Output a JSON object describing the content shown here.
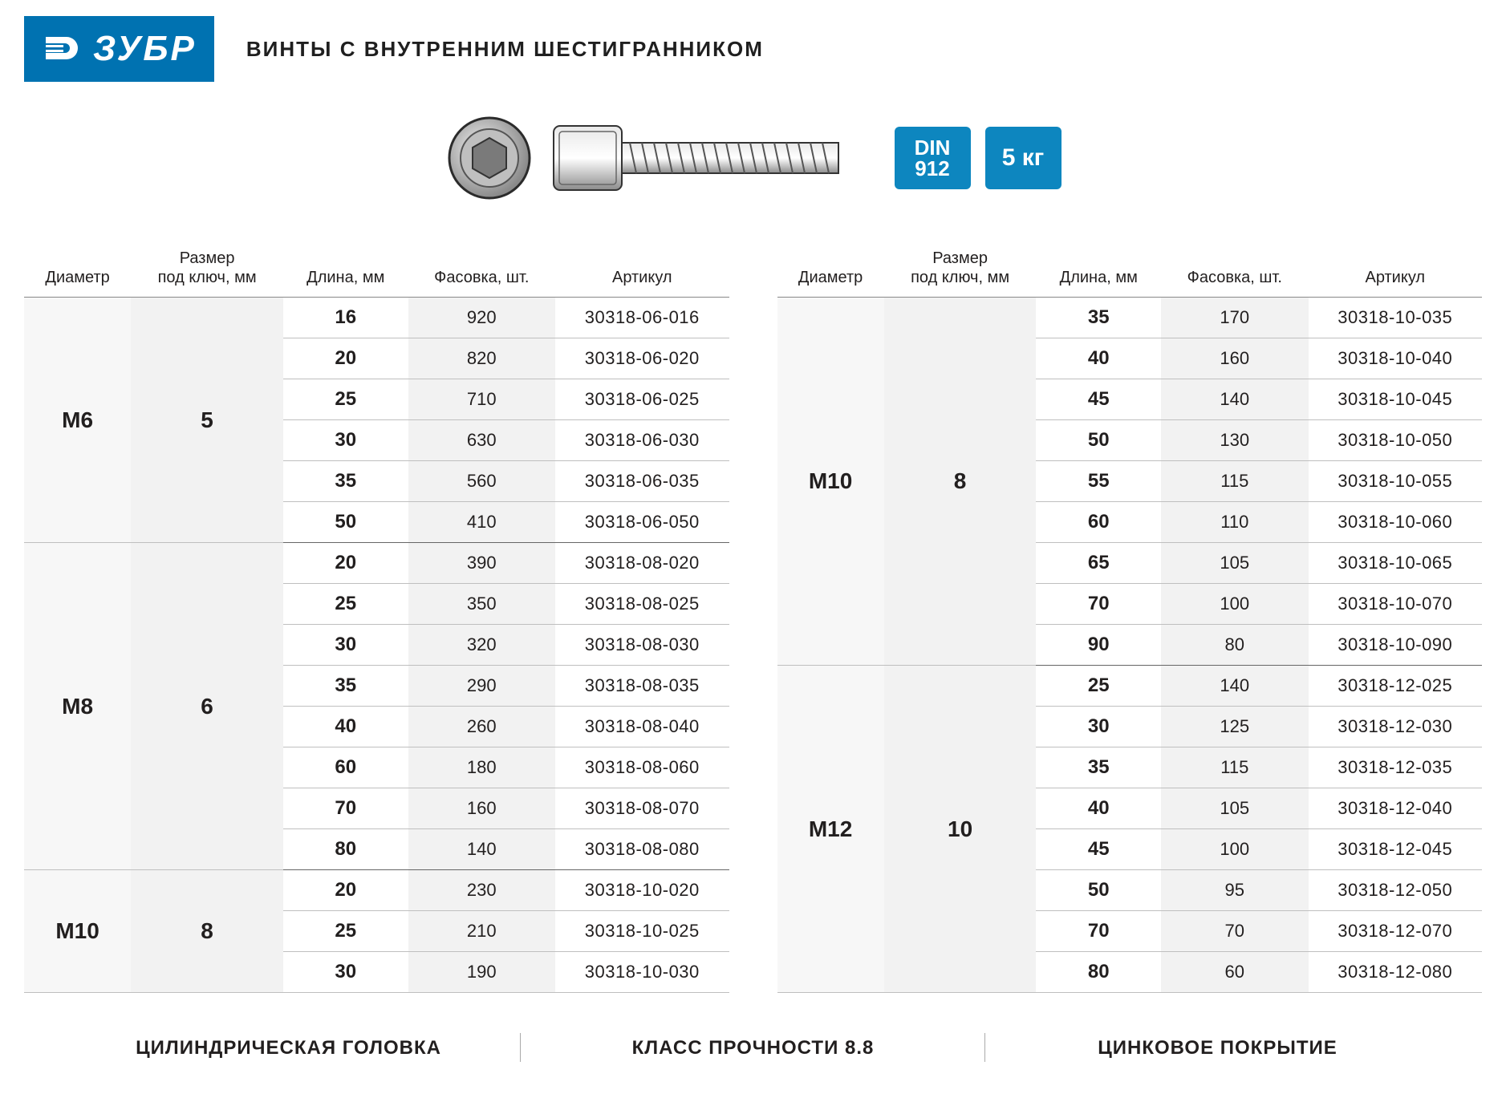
{
  "logo_text": "ЗУБР",
  "title": "ВИНТЫ С ВНУТРЕННИМ ШЕСТИГРАННИКОМ",
  "badges": [
    {
      "line1": "DIN",
      "line2": "912"
    },
    {
      "line1": "5 кг",
      "line2": ""
    }
  ],
  "columns": [
    "Диаметр",
    "Размер\nпод ключ, мм",
    "Длина, мм",
    "Фасовка, шт.",
    "Артикул"
  ],
  "colors": {
    "brand": "#0072b1",
    "badge": "#0d86bf",
    "row_alt": "#f2f2f2"
  },
  "table_left": {
    "groups": [
      {
        "diameter": "M6",
        "key": "5",
        "rows": [
          {
            "len": "16",
            "qty": "920",
            "art": "30318-06-016"
          },
          {
            "len": "20",
            "qty": "820",
            "art": "30318-06-020"
          },
          {
            "len": "25",
            "qty": "710",
            "art": "30318-06-025"
          },
          {
            "len": "30",
            "qty": "630",
            "art": "30318-06-030"
          },
          {
            "len": "35",
            "qty": "560",
            "art": "30318-06-035"
          },
          {
            "len": "50",
            "qty": "410",
            "art": "30318-06-050"
          }
        ]
      },
      {
        "diameter": "M8",
        "key": "6",
        "rows": [
          {
            "len": "20",
            "qty": "390",
            "art": "30318-08-020"
          },
          {
            "len": "25",
            "qty": "350",
            "art": "30318-08-025"
          },
          {
            "len": "30",
            "qty": "320",
            "art": "30318-08-030"
          },
          {
            "len": "35",
            "qty": "290",
            "art": "30318-08-035"
          },
          {
            "len": "40",
            "qty": "260",
            "art": "30318-08-040"
          },
          {
            "len": "60",
            "qty": "180",
            "art": "30318-08-060"
          },
          {
            "len": "70",
            "qty": "160",
            "art": "30318-08-070"
          },
          {
            "len": "80",
            "qty": "140",
            "art": "30318-08-080"
          }
        ]
      },
      {
        "diameter": "M10",
        "key": "8",
        "rows": [
          {
            "len": "20",
            "qty": "230",
            "art": "30318-10-020"
          },
          {
            "len": "25",
            "qty": "210",
            "art": "30318-10-025"
          },
          {
            "len": "30",
            "qty": "190",
            "art": "30318-10-030"
          }
        ]
      }
    ]
  },
  "table_right": {
    "groups": [
      {
        "diameter": "M10",
        "key": "8",
        "rows": [
          {
            "len": "35",
            "qty": "170",
            "art": "30318-10-035"
          },
          {
            "len": "40",
            "qty": "160",
            "art": "30318-10-040"
          },
          {
            "len": "45",
            "qty": "140",
            "art": "30318-10-045"
          },
          {
            "len": "50",
            "qty": "130",
            "art": "30318-10-050"
          },
          {
            "len": "55",
            "qty": "115",
            "art": "30318-10-055"
          },
          {
            "len": "60",
            "qty": "110",
            "art": "30318-10-060"
          },
          {
            "len": "65",
            "qty": "105",
            "art": "30318-10-065"
          },
          {
            "len": "70",
            "qty": "100",
            "art": "30318-10-070"
          },
          {
            "len": "90",
            "qty": "80",
            "art": "30318-10-090"
          }
        ]
      },
      {
        "diameter": "M12",
        "key": "10",
        "rows": [
          {
            "len": "25",
            "qty": "140",
            "art": "30318-12-025"
          },
          {
            "len": "30",
            "qty": "125",
            "art": "30318-12-030"
          },
          {
            "len": "35",
            "qty": "115",
            "art": "30318-12-035"
          },
          {
            "len": "40",
            "qty": "105",
            "art": "30318-12-040"
          },
          {
            "len": "45",
            "qty": "100",
            "art": "30318-12-045"
          },
          {
            "len": "50",
            "qty": "95",
            "art": "30318-12-050"
          },
          {
            "len": "70",
            "qty": "70",
            "art": "30318-12-070"
          },
          {
            "len": "80",
            "qty": "60",
            "art": "30318-12-080"
          }
        ]
      }
    ]
  },
  "footer": [
    "ЦИЛИНДРИЧЕСКАЯ ГОЛОВКА",
    "КЛАСС ПРОЧНОСТИ 8.8",
    "ЦИНКОВОЕ ПОКРЫТИЕ"
  ]
}
